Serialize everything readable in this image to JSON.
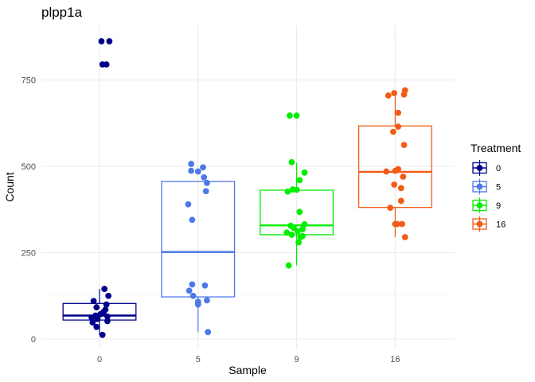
{
  "chart_data": {
    "type": "boxplot",
    "title": "plpp1a",
    "xlabel": "Sample",
    "ylabel": "Count",
    "categories": [
      "0",
      "5",
      "9",
      "16"
    ],
    "ylim": [
      -5,
      905
    ],
    "yticks": [
      0,
      250,
      500,
      750
    ],
    "grid": true,
    "legend": {
      "title": "Treatment",
      "position": "right"
    },
    "series": [
      {
        "name": "0",
        "color": "#00008B",
        "box": {
          "q1": 55,
          "median": 68,
          "q3": 103,
          "whisker_low": 12,
          "whisker_high": 145
        },
        "points": [
          {
            "dx": 0.02,
            "y": 862
          },
          {
            "dx": 0.1,
            "y": 862
          },
          {
            "dx": 0.03,
            "y": 795
          },
          {
            "dx": 0.07,
            "y": 795
          },
          {
            "dx": 0.05,
            "y": 145
          },
          {
            "dx": 0.09,
            "y": 125
          },
          {
            "dx": -0.06,
            "y": 110
          },
          {
            "dx": 0.07,
            "y": 100
          },
          {
            "dx": -0.03,
            "y": 92
          },
          {
            "dx": 0.06,
            "y": 85
          },
          {
            "dx": 0.04,
            "y": 78
          },
          {
            "dx": 0.01,
            "y": 72
          },
          {
            "dx": -0.04,
            "y": 68
          },
          {
            "dx": 0.08,
            "y": 65
          },
          {
            "dx": -0.08,
            "y": 62
          },
          {
            "dx": -0.02,
            "y": 58
          },
          {
            "dx": 0.08,
            "y": 52
          },
          {
            "dx": -0.07,
            "y": 48
          },
          {
            "dx": -0.03,
            "y": 35
          },
          {
            "dx": 0.03,
            "y": 12
          }
        ]
      },
      {
        "name": "5",
        "color": "#4D79E8",
        "box": {
          "q1": 122,
          "median": 252,
          "q3": 456,
          "whisker_low": 20,
          "whisker_high": 456
        },
        "points": [
          {
            "dx": -0.07,
            "y": 507
          },
          {
            "dx": 0.05,
            "y": 497
          },
          {
            "dx": -0.07,
            "y": 487
          },
          {
            "dx": 0.0,
            "y": 485
          },
          {
            "dx": 0.06,
            "y": 468
          },
          {
            "dx": 0.09,
            "y": 452
          },
          {
            "dx": 0.08,
            "y": 428
          },
          {
            "dx": -0.1,
            "y": 390
          },
          {
            "dx": -0.06,
            "y": 345
          },
          {
            "dx": -0.06,
            "y": 158
          },
          {
            "dx": 0.07,
            "y": 155
          },
          {
            "dx": -0.09,
            "y": 140
          },
          {
            "dx": -0.05,
            "y": 125
          },
          {
            "dx": 0.09,
            "y": 112
          },
          {
            "dx": 0.0,
            "y": 108
          },
          {
            "dx": 0.0,
            "y": 100
          },
          {
            "dx": 0.1,
            "y": 20
          }
        ]
      },
      {
        "name": "9",
        "color": "#00EE00",
        "box": {
          "q1": 302,
          "median": 329,
          "q3": 431,
          "whisker_low": 213,
          "whisker_high": 510
        },
        "points": [
          {
            "dx": -0.07,
            "y": 647
          },
          {
            "dx": 0.0,
            "y": 647
          },
          {
            "dx": -0.05,
            "y": 512
          },
          {
            "dx": 0.08,
            "y": 482
          },
          {
            "dx": 0.03,
            "y": 460
          },
          {
            "dx": -0.04,
            "y": 433
          },
          {
            "dx": 0.0,
            "y": 432
          },
          {
            "dx": -0.09,
            "y": 427
          },
          {
            "dx": 0.03,
            "y": 368
          },
          {
            "dx": 0.08,
            "y": 332
          },
          {
            "dx": -0.06,
            "y": 328
          },
          {
            "dx": -0.03,
            "y": 322
          },
          {
            "dx": 0.06,
            "y": 318
          },
          {
            "dx": -0.1,
            "y": 308
          },
          {
            "dx": 0.01,
            "y": 312
          },
          {
            "dx": -0.05,
            "y": 302
          },
          {
            "dx": 0.06,
            "y": 298
          },
          {
            "dx": 0.04,
            "y": 295
          },
          {
            "dx": 0.02,
            "y": 280
          },
          {
            "dx": -0.08,
            "y": 213
          }
        ]
      },
      {
        "name": "16",
        "color": "#F25C16",
        "box": {
          "q1": 381,
          "median": 484,
          "q3": 617,
          "whisker_low": 295,
          "whisker_high": 718
        },
        "points": [
          {
            "dx": 0.1,
            "y": 720
          },
          {
            "dx": 0.09,
            "y": 708
          },
          {
            "dx": -0.01,
            "y": 712
          },
          {
            "dx": -0.07,
            "y": 705
          },
          {
            "dx": 0.03,
            "y": 655
          },
          {
            "dx": -0.02,
            "y": 600
          },
          {
            "dx": 0.03,
            "y": 615
          },
          {
            "dx": 0.09,
            "y": 562
          },
          {
            "dx": 0.03,
            "y": 492
          },
          {
            "dx": 0.0,
            "y": 487
          },
          {
            "dx": -0.09,
            "y": 485
          },
          {
            "dx": 0.08,
            "y": 470
          },
          {
            "dx": -0.01,
            "y": 447
          },
          {
            "dx": 0.06,
            "y": 437
          },
          {
            "dx": 0.06,
            "y": 400
          },
          {
            "dx": -0.05,
            "y": 380
          },
          {
            "dx": 0.02,
            "y": 333
          },
          {
            "dx": 0.07,
            "y": 333
          },
          {
            "dx": 0.0,
            "y": 333
          },
          {
            "dx": 0.1,
            "y": 295
          }
        ]
      }
    ]
  }
}
